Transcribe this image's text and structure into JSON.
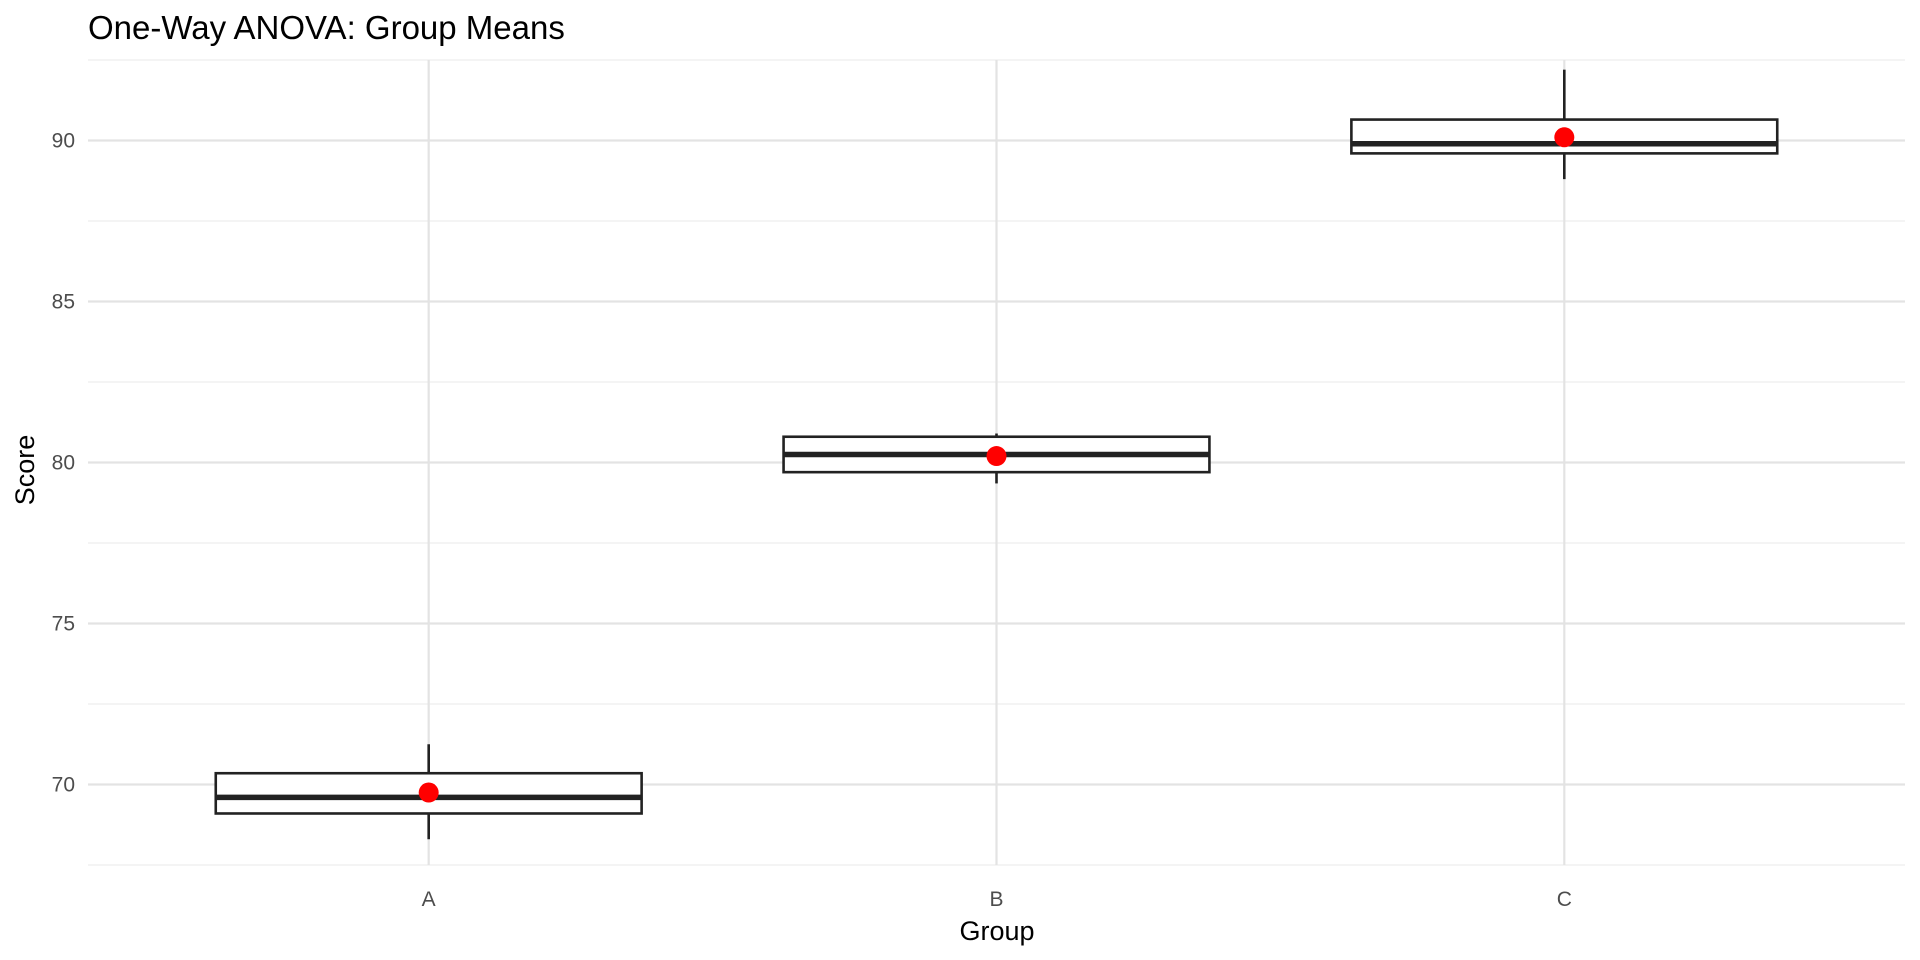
{
  "chart_data": {
    "type": "box",
    "title": "One-Way ANOVA: Group Means",
    "xlabel": "Group",
    "ylabel": "Score",
    "categories": [
      "A",
      "B",
      "C"
    ],
    "ylim": [
      67.5,
      92.5
    ],
    "y_ticks": [
      70,
      75,
      80,
      85,
      90
    ],
    "y_tick_labels": [
      "70",
      "75",
      "80",
      "85",
      "90"
    ],
    "grid": true,
    "mean_marker_color": "#ff0000",
    "boxes": [
      {
        "group": "A",
        "whisker_low": 68.3,
        "q1": 69.1,
        "median": 69.6,
        "q3": 70.35,
        "whisker_high": 71.25,
        "mean": 69.75
      },
      {
        "group": "B",
        "whisker_low": 79.35,
        "q1": 79.7,
        "median": 80.25,
        "q3": 80.8,
        "whisker_high": 80.9,
        "mean": 80.2
      },
      {
        "group": "C",
        "whisker_low": 88.8,
        "q1": 89.6,
        "median": 89.9,
        "q3": 90.65,
        "whisker_high": 92.2,
        "mean": 90.1
      }
    ]
  }
}
